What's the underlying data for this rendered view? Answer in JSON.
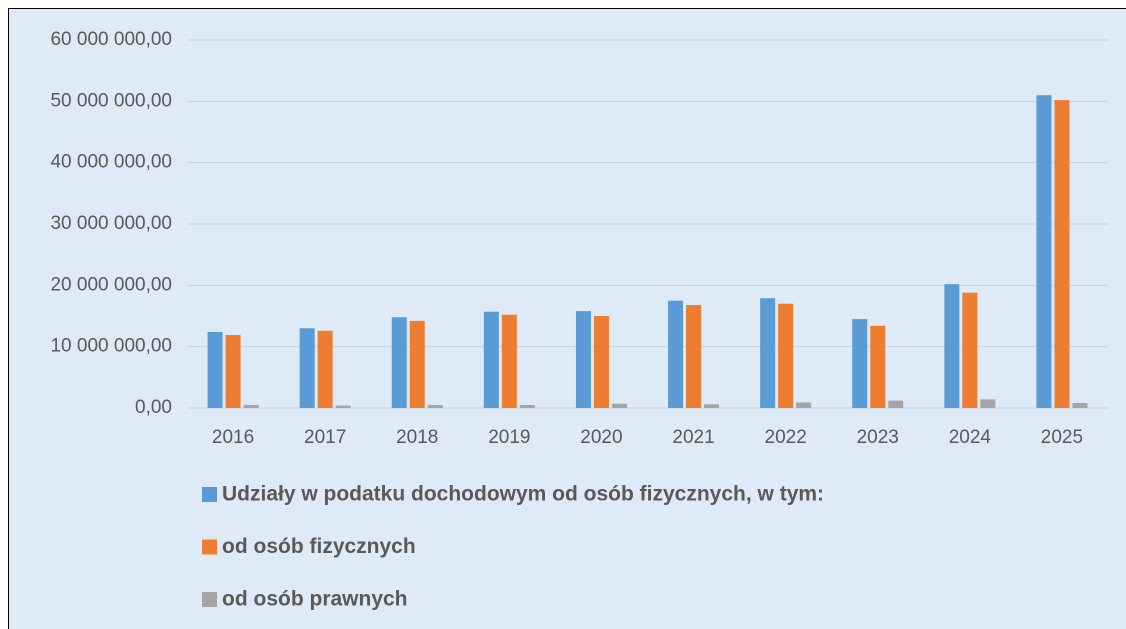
{
  "chart_data": {
    "type": "bar",
    "categories": [
      "2016",
      "2017",
      "2018",
      "2019",
      "2020",
      "2021",
      "2022",
      "2023",
      "2024",
      "2025"
    ],
    "series": [
      {
        "name": "Udziały w podatku dochodowym od osób fizycznych, w tym:",
        "color": "#5b9bd5",
        "values": [
          12400000,
          13000000,
          14800000,
          15700000,
          15800000,
          17500000,
          17900000,
          14500000,
          20200000,
          51000000
        ]
      },
      {
        "name": "od osób fizycznych",
        "color": "#ed7d31",
        "values": [
          11900000,
          12600000,
          14200000,
          15200000,
          15000000,
          16800000,
          17000000,
          13400000,
          18800000,
          50200000
        ]
      },
      {
        "name": "od osób prawnych",
        "color": "#a5a5a5",
        "values": [
          500000,
          400000,
          500000,
          500000,
          700000,
          600000,
          900000,
          1200000,
          1400000,
          800000
        ]
      }
    ],
    "ylim": [
      0,
      60000000
    ],
    "yticks": [
      {
        "value": 0,
        "label": "0,00"
      },
      {
        "value": 10000000,
        "label": "10 000 000,00"
      },
      {
        "value": 20000000,
        "label": "20 000 000,00"
      },
      {
        "value": 30000000,
        "label": "30 000 000,00"
      },
      {
        "value": 40000000,
        "label": "40 000 000,00"
      },
      {
        "value": 50000000,
        "label": "50 000 000,00"
      },
      {
        "value": 60000000,
        "label": "60 000 000,00"
      }
    ],
    "grid": true
  }
}
